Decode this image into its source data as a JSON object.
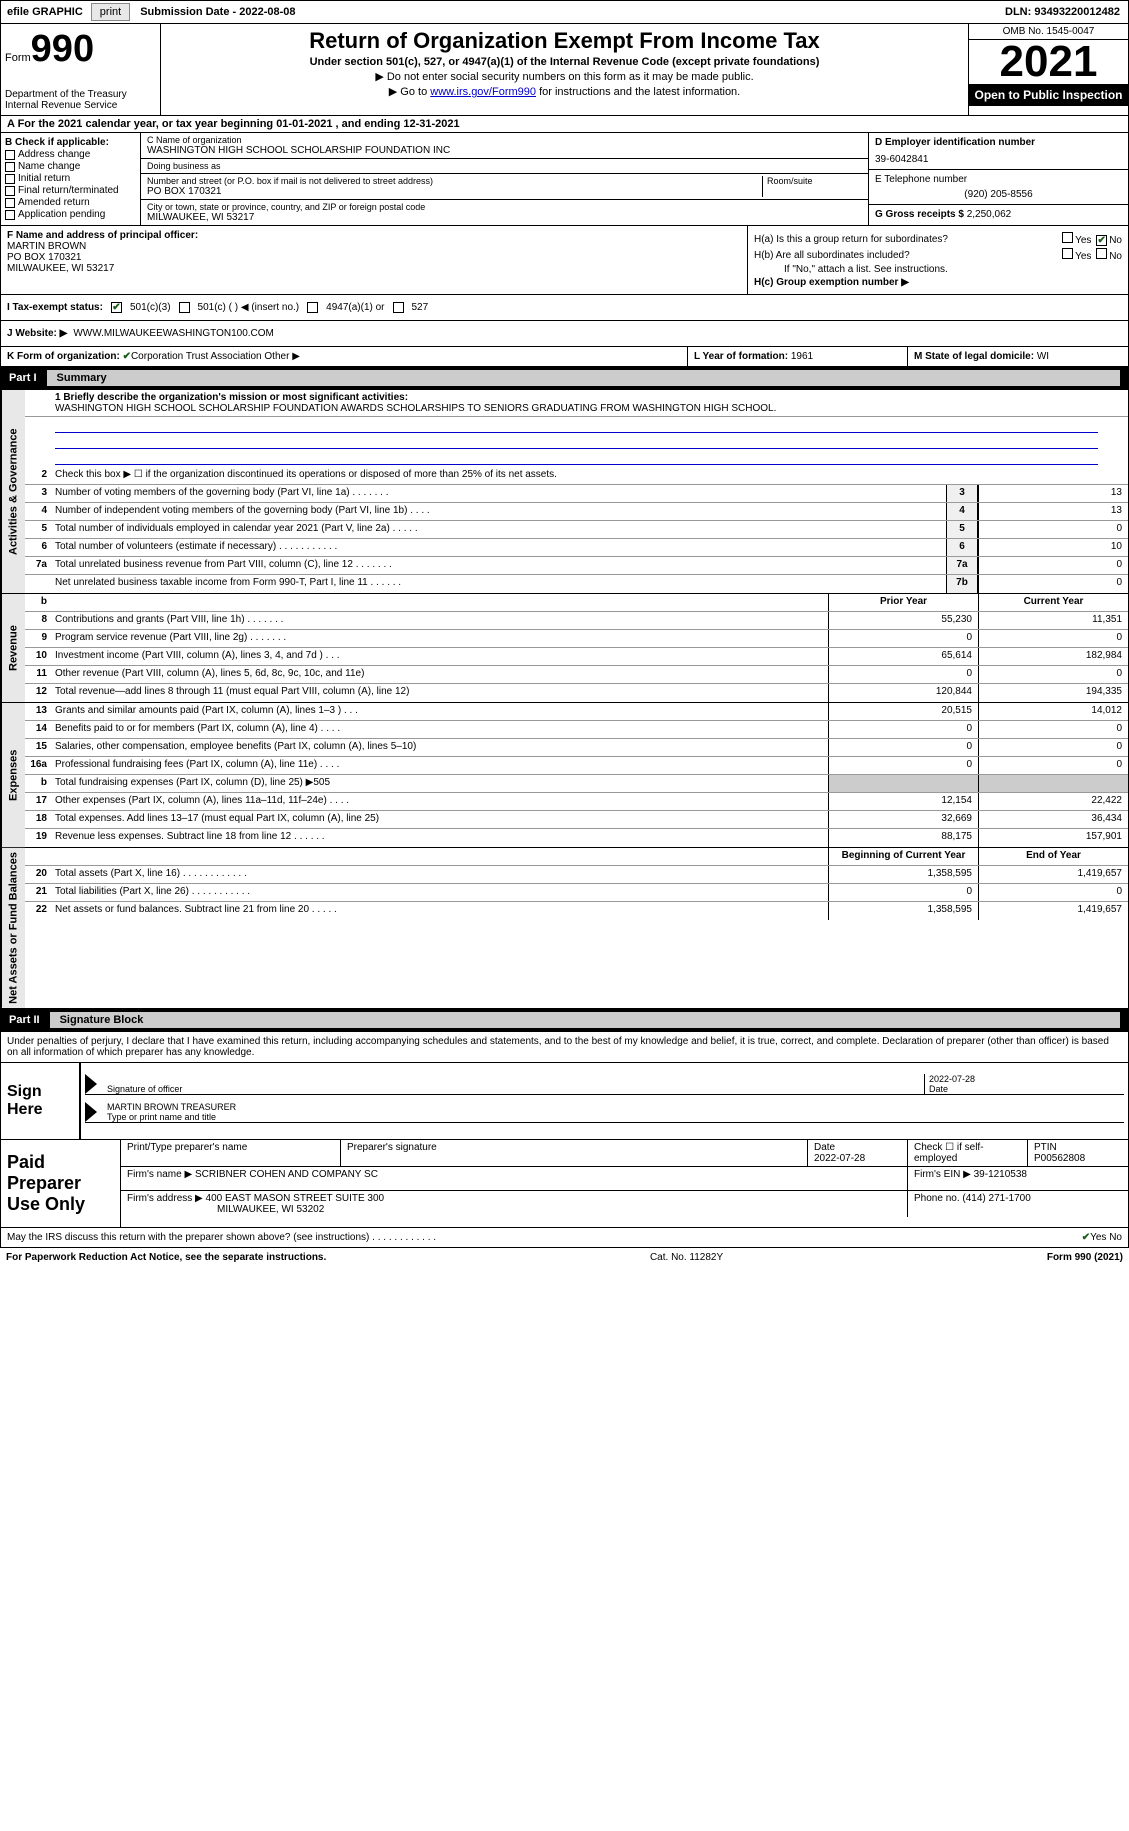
{
  "topbar": {
    "efile": "efile GRAPHIC",
    "print": "print",
    "submission": "Submission Date - 2022-08-08",
    "dln": "DLN: 93493220012482"
  },
  "header": {
    "form_prefix": "Form",
    "form_number": "990",
    "dept": "Department of the Treasury Internal Revenue Service",
    "title": "Return of Organization Exempt From Income Tax",
    "subtitle": "Under section 501(c), 527, or 4947(a)(1) of the Internal Revenue Code (except private foundations)",
    "note1": "▶ Do not enter social security numbers on this form as it may be made public.",
    "note2_prefix": "▶ Go to ",
    "note2_link": "www.irs.gov/Form990",
    "note2_suffix": " for instructions and the latest information.",
    "omb": "OMB No. 1545-0047",
    "year": "2021",
    "inspection": "Open to Public Inspection"
  },
  "row_a": "A For the 2021 calendar year, or tax year beginning 01-01-2021    , and ending 12-31-2021",
  "col_b": {
    "label": "B Check if applicable:",
    "options": [
      "Address change",
      "Name change",
      "Initial return",
      "Final return/terminated",
      "Amended return",
      "Application pending"
    ]
  },
  "col_c": {
    "name_label": "C Name of organization",
    "name": "WASHINGTON HIGH SCHOOL SCHOLARSHIP FOUNDATION INC",
    "dba_label": "Doing business as",
    "dba": "",
    "addr_label": "Number and street (or P.O. box if mail is not delivered to street address)",
    "room_label": "Room/suite",
    "addr": "PO BOX 170321",
    "city_label": "City or town, state or province, country, and ZIP or foreign postal code",
    "city": "MILWAUKEE, WI  53217"
  },
  "col_de": {
    "d_label": "D Employer identification number",
    "d_val": "39-6042841",
    "e_label": "E Telephone number",
    "e_val": "(920) 205-8556",
    "g_label": "G Gross receipts $",
    "g_val": "2,250,062"
  },
  "col_f": {
    "label": "F Name and address of principal officer:",
    "name": "MARTIN BROWN",
    "addr": "PO BOX 170321",
    "city": "MILWAUKEE, WI  53217"
  },
  "col_h": {
    "ha": "H(a)  Is this a group return for subordinates?",
    "ha_no": "No",
    "hb": "H(b)  Are all subordinates included?",
    "hb_note": "If \"No,\" attach a list. See instructions.",
    "hc": "H(c)  Group exemption number ▶"
  },
  "row_i": {
    "label": "I  Tax-exempt status:",
    "opts": [
      "501(c)(3)",
      "501(c) (  ) ◀ (insert no.)",
      "4947(a)(1) or",
      "527"
    ]
  },
  "row_j": {
    "label": "J  Website: ▶",
    "val": "WWW.MILWAUKEEWASHINGTON100.COM"
  },
  "row_k": {
    "label": "K Form of organization:",
    "opts": [
      "Corporation",
      "Trust",
      "Association",
      "Other ▶"
    ]
  },
  "row_l": {
    "label": "L Year of formation:",
    "val": "1961"
  },
  "row_m": {
    "label": "M State of legal domicile:",
    "val": "WI"
  },
  "parts": {
    "p1": "Part I",
    "p1_title": "Summary",
    "p2": "Part II",
    "p2_title": "Signature Block"
  },
  "summary": {
    "mission_label": "1  Briefly describe the organization's mission or most significant activities:",
    "mission": "WASHINGTON HIGH SCHOOL SCHOLARSHIP FOUNDATION AWARDS SCHOLARSHIPS TO SENIORS GRADUATING FROM WASHINGTON HIGH SCHOOL.",
    "line2": "Check this box ▶ ☐  if the organization discontinued its operations or disposed of more than 25% of its net assets.",
    "sides": {
      "gov": "Activities & Governance",
      "rev": "Revenue",
      "exp": "Expenses",
      "net": "Net Assets or Fund Balances"
    },
    "hdr_prior": "Prior Year",
    "hdr_current": "Current Year",
    "hdr_begin": "Beginning of Current Year",
    "hdr_end": "End of Year",
    "rows_gov": [
      {
        "n": "3",
        "d": "Number of voting members of the governing body (Part VI, line 1a)  .    .    .    .    .    .    .",
        "box": "3",
        "v": "13"
      },
      {
        "n": "4",
        "d": "Number of independent voting members of the governing body (Part VI, line 1b)  .    .    .    .",
        "box": "4",
        "v": "13"
      },
      {
        "n": "5",
        "d": "Total number of individuals employed in calendar year 2021 (Part V, line 2a)  .    .    .    .    .",
        "box": "5",
        "v": "0"
      },
      {
        "n": "6",
        "d": "Total number of volunteers (estimate if necessary)    .    .    .    .    .    .    .    .    .    .    .",
        "box": "6",
        "v": "10"
      },
      {
        "n": "7a",
        "d": "Total unrelated business revenue from Part VIII, column (C), line 12   .    .    .    .    .    .    .",
        "box": "7a",
        "v": "0"
      },
      {
        "n": "",
        "d": "Net unrelated business taxable income from Form 990-T, Part I, line 11   .    .    .    .    .    .",
        "box": "7b",
        "v": "0"
      }
    ],
    "rows_rev": [
      {
        "n": "8",
        "d": "Contributions and grants (Part VIII, line 1h)   .    .    .    .    .    .    .",
        "p": "55,230",
        "c": "11,351"
      },
      {
        "n": "9",
        "d": "Program service revenue (Part VIII, line 2g)   .    .    .    .    .    .    .",
        "p": "0",
        "c": "0"
      },
      {
        "n": "10",
        "d": "Investment income (Part VIII, column (A), lines 3, 4, and 7d )   .    .    .",
        "p": "65,614",
        "c": "182,984"
      },
      {
        "n": "11",
        "d": "Other revenue (Part VIII, column (A), lines 5, 6d, 8c, 9c, 10c, and 11e)",
        "p": "0",
        "c": "0"
      },
      {
        "n": "12",
        "d": "Total revenue—add lines 8 through 11 (must equal Part VIII, column (A), line 12)",
        "p": "120,844",
        "c": "194,335"
      }
    ],
    "rows_exp": [
      {
        "n": "13",
        "d": "Grants and similar amounts paid (Part IX, column (A), lines 1–3 )  .    .    .",
        "p": "20,515",
        "c": "14,012"
      },
      {
        "n": "14",
        "d": "Benefits paid to or for members (Part IX, column (A), line 4)  .    .    .    .",
        "p": "0",
        "c": "0"
      },
      {
        "n": "15",
        "d": "Salaries, other compensation, employee benefits (Part IX, column (A), lines 5–10)",
        "p": "0",
        "c": "0"
      },
      {
        "n": "16a",
        "d": "Professional fundraising fees (Part IX, column (A), line 11e)  .    .    .    .",
        "p": "0",
        "c": "0"
      },
      {
        "n": "b",
        "d": "Total fundraising expenses (Part IX, column (D), line 25) ▶505",
        "p": "",
        "c": "",
        "shaded": true
      },
      {
        "n": "17",
        "d": "Other expenses (Part IX, column (A), lines 11a–11d, 11f–24e)  .    .    .    .",
        "p": "12,154",
        "c": "22,422"
      },
      {
        "n": "18",
        "d": "Total expenses. Add lines 13–17 (must equal Part IX, column (A), line 25)",
        "p": "32,669",
        "c": "36,434"
      },
      {
        "n": "19",
        "d": "Revenue less expenses. Subtract line 18 from line 12  .    .    .    .    .    .",
        "p": "88,175",
        "c": "157,901"
      }
    ],
    "rows_net": [
      {
        "n": "20",
        "d": "Total assets (Part X, line 16)  .    .    .    .    .    .    .    .    .    .    .    .",
        "p": "1,358,595",
        "c": "1,419,657"
      },
      {
        "n": "21",
        "d": "Total liabilities (Part X, line 26)  .    .    .    .    .    .    .    .    .    .    .",
        "p": "0",
        "c": "0"
      },
      {
        "n": "22",
        "d": "Net assets or fund balances. Subtract line 21 from line 20  .    .    .    .    .",
        "p": "1,358,595",
        "c": "1,419,657"
      }
    ]
  },
  "sig": {
    "perjury": "Under penalties of perjury, I declare that I have examined this return, including accompanying schedules and statements, and to the best of my knowledge and belief, it is true, correct, and complete. Declaration of preparer (other than officer) is based on all information of which preparer has any knowledge.",
    "sign_here": "Sign Here",
    "sig_officer": "Signature of officer",
    "date": "Date",
    "date_val": "2022-07-28",
    "name_title": "MARTIN BROWN  TREASURER",
    "name_title_label": "Type or print name and title"
  },
  "preparer": {
    "label": "Paid Preparer Use Only",
    "print_name_label": "Print/Type preparer's name",
    "sig_label": "Preparer's signature",
    "date_label": "Date",
    "date_val": "2022-07-28",
    "check_label": "Check ☐ if self-employed",
    "ptin_label": "PTIN",
    "ptin": "P00562808",
    "firm_name_label": "Firm's name    ▶",
    "firm_name": "SCRIBNER COHEN AND COMPANY SC",
    "firm_ein_label": "Firm's EIN ▶",
    "firm_ein": "39-1210538",
    "firm_addr_label": "Firm's address ▶",
    "firm_addr": "400 EAST MASON STREET SUITE 300",
    "firm_city": "MILWAUKEE, WI  53202",
    "phone_label": "Phone no.",
    "phone": "(414) 271-1700"
  },
  "bottom": {
    "discuss": "May the IRS discuss this return with the preparer shown above? (see instructions)  .    .    .    .    .    .    .    .    .    .    .    .",
    "yes": "Yes",
    "no": "No"
  },
  "footer": {
    "pra": "For Paperwork Reduction Act Notice, see the separate instructions.",
    "cat": "Cat. No. 11282Y",
    "form": "Form 990 (2021)"
  }
}
